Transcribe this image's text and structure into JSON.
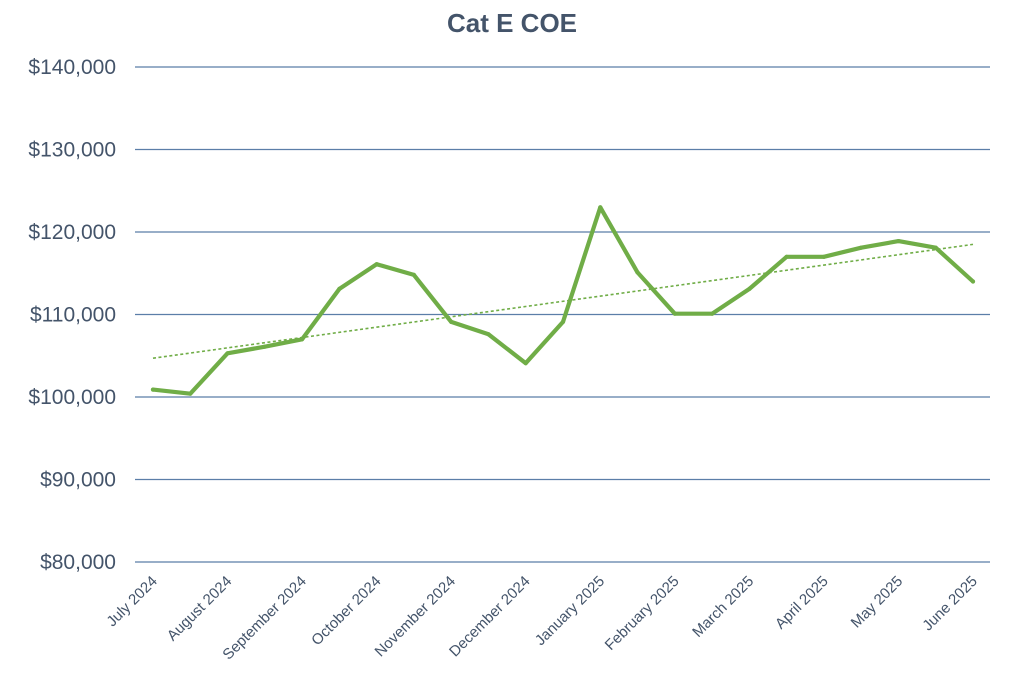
{
  "chart_data": {
    "type": "line",
    "title": "Cat E COE",
    "xlabel": "",
    "ylabel": "",
    "ylim": [
      80000,
      140000
    ],
    "yticks": [
      80000,
      90000,
      100000,
      110000,
      120000,
      130000,
      140000
    ],
    "ytick_labels": [
      "$80,000",
      "$90,000",
      "$100,000",
      "$110,000",
      "$120,000",
      "$130,000",
      "$140,000"
    ],
    "xtick_labels": [
      "July 2024",
      "August 2024",
      "September 2024",
      "October 2024",
      "November 2024",
      "December 2024",
      "January 2025",
      "February 2025",
      "March 2025",
      "April 2025",
      "May 2025",
      "June 2025"
    ],
    "grid": true,
    "legend": "none",
    "series": [
      {
        "name": "Cat E COE",
        "color": "#70ad47",
        "style": "solid",
        "values": [
          100900,
          100400,
          105300,
          106100,
          107000,
          113100,
          116100,
          114800,
          109100,
          107600,
          104100,
          109100,
          123000,
          115100,
          110100,
          110100,
          113100,
          117000,
          117000,
          118100,
          118900,
          118100,
          114000
        ]
      },
      {
        "name": "Trendline",
        "color": "#70ad47",
        "style": "dashed",
        "start": 104700,
        "end": 118500
      }
    ]
  }
}
